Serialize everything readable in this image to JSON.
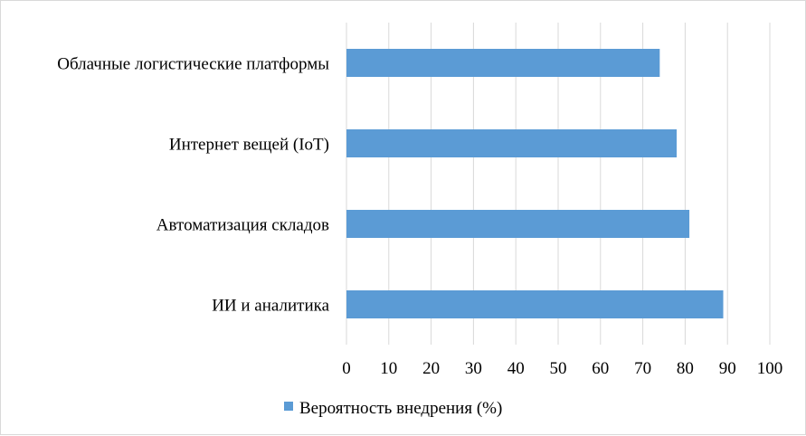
{
  "chart_data": {
    "type": "bar",
    "orientation": "horizontal",
    "title": "",
    "xlabel": "",
    "ylabel": "",
    "categories": [
      "ИИ и аналитика",
      "Автоматизация складов",
      "Интернет вещей (IoT)",
      "Облачные логистические платформы"
    ],
    "series": [
      {
        "name": "Вероятность внедрения (%)",
        "values": [
          89,
          81,
          78,
          74
        ],
        "color": "#5b9bd5"
      }
    ],
    "xlim": [
      0,
      100
    ],
    "xticks": [
      "0",
      "10",
      "20",
      "30",
      "40",
      "50",
      "60",
      "70",
      "80",
      "90",
      "100"
    ],
    "grid": "vertical",
    "gridColor": "#d9d9d9",
    "legend": "bottom"
  }
}
